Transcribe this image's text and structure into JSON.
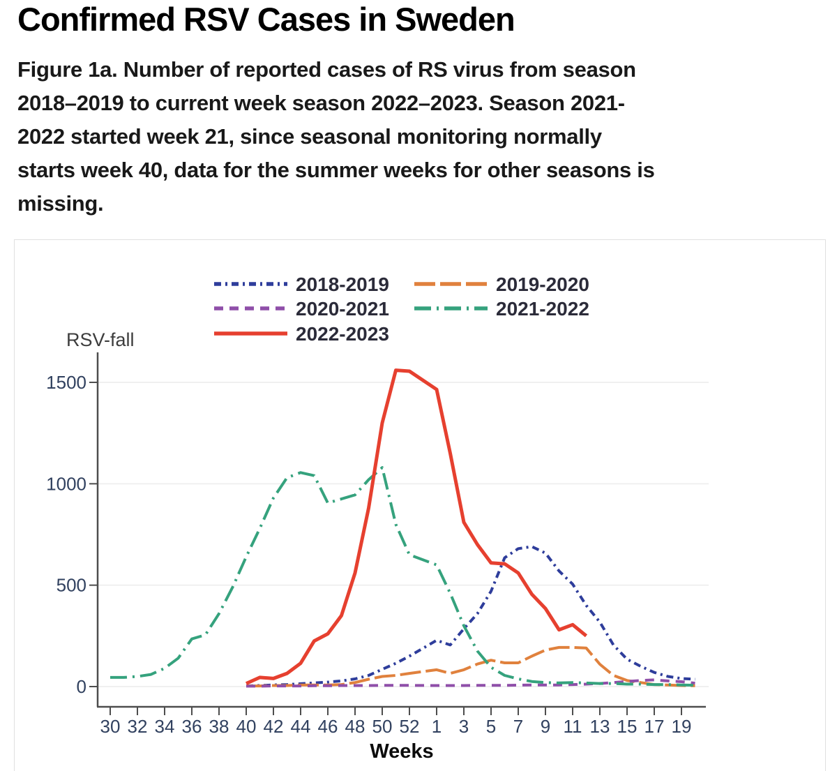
{
  "title": "Confirmed RSV Cases in Sweden",
  "caption": "Figure 1a. Number of reported cases of RS virus from season\n2018–2019 to current week season 2022–2023. Season 2021-\n2022 started week 21, since seasonal monitoring normally\nstarts week 40, data for the summer weeks for other seasons is\nmissing.",
  "chart_data": {
    "type": "line",
    "ylabel": "RSV-fall",
    "xlabel": "Weeks",
    "x_tick_labels": [
      "30",
      "32",
      "34",
      "36",
      "38",
      "40",
      "42",
      "44",
      "46",
      "48",
      "50",
      "52",
      "1",
      "3",
      "5",
      "7",
      "9",
      "11",
      "13",
      "15",
      "17",
      "19"
    ],
    "y_ticks": [
      0,
      500,
      1000,
      1500
    ],
    "ylim": [
      0,
      1650
    ],
    "grid": "horizontal",
    "legend_position": "top",
    "axis_color": "#4d4d4d",
    "gridline_color": "#ececec",
    "panel_border_color": "#e0e0e0",
    "series": [
      {
        "name": "2018-2019",
        "color": "#2e3d9b",
        "line": "dash-dot-dot",
        "weeks": [
          40,
          41,
          42,
          43,
          44,
          45,
          46,
          47,
          48,
          49,
          50,
          51,
          52,
          1,
          2,
          3,
          4,
          5,
          6,
          7,
          8,
          9,
          10,
          11,
          12,
          13,
          14,
          15,
          16,
          17,
          18,
          19,
          20
        ],
        "values": [
          3,
          5,
          8,
          10,
          14,
          18,
          22,
          28,
          38,
          55,
          85,
          115,
          150,
          228,
          205,
          285,
          360,
          470,
          635,
          680,
          690,
          658,
          570,
          505,
          400,
          318,
          205,
          135,
          100,
          70,
          50,
          40,
          36
        ]
      },
      {
        "name": "2019-2020",
        "color": "#e0813d",
        "line": "long-dash",
        "weeks": [
          40,
          41,
          42,
          43,
          44,
          45,
          46,
          47,
          48,
          49,
          50,
          51,
          52,
          1,
          2,
          3,
          4,
          5,
          6,
          7,
          8,
          9,
          10,
          11,
          12,
          13,
          14,
          15,
          16,
          17,
          18,
          19,
          20
        ],
        "values": [
          3,
          3,
          5,
          5,
          8,
          8,
          8,
          10,
          20,
          36,
          50,
          55,
          65,
          83,
          65,
          83,
          111,
          130,
          117,
          117,
          150,
          180,
          193,
          193,
          190,
          110,
          55,
          30,
          20,
          10,
          8,
          5,
          4
        ]
      },
      {
        "name": "2020-2021",
        "color": "#8f4fa9",
        "line": "dash",
        "weeks": [
          40,
          41,
          42,
          43,
          44,
          45,
          46,
          47,
          48,
          49,
          50,
          51,
          52,
          1,
          2,
          3,
          4,
          5,
          6,
          7,
          8,
          9,
          10,
          11,
          12,
          13,
          14,
          15,
          16,
          17,
          18,
          19,
          20
        ],
        "values": [
          2,
          2,
          3,
          3,
          3,
          4,
          4,
          5,
          5,
          5,
          6,
          6,
          6,
          5,
          5,
          5,
          6,
          6,
          6,
          7,
          8,
          8,
          8,
          10,
          12,
          15,
          20,
          25,
          30,
          33,
          28,
          24,
          17
        ]
      },
      {
        "name": "2021-2022",
        "color": "#35a27d",
        "line": "long-dash-dot",
        "weeks": [
          30,
          31,
          32,
          33,
          34,
          35,
          36,
          37,
          38,
          39,
          40,
          41,
          42,
          43,
          44,
          45,
          46,
          47,
          48,
          49,
          50,
          51,
          52,
          1,
          2,
          3,
          4,
          5,
          6,
          7,
          8,
          9,
          10,
          11,
          12,
          13,
          14,
          15,
          16,
          17,
          18,
          19,
          20
        ],
        "values": [
          45,
          45,
          50,
          60,
          90,
          140,
          235,
          255,
          360,
          490,
          640,
          780,
          930,
          1030,
          1055,
          1040,
          905,
          925,
          945,
          1020,
          1080,
          800,
          650,
          600,
          460,
          300,
          175,
          95,
          55,
          38,
          25,
          20,
          18,
          20,
          18,
          15,
          15,
          12,
          12,
          10,
          10,
          8,
          7
        ]
      },
      {
        "name": "2022-2023",
        "color": "#e6402f",
        "line": "solid",
        "weeks": [
          40,
          41,
          42,
          43,
          44,
          45,
          46,
          47,
          48,
          49,
          50,
          51,
          52,
          1,
          2,
          3,
          4,
          5,
          6,
          7,
          8,
          9,
          10,
          11,
          12
        ],
        "values": [
          15,
          45,
          40,
          65,
          115,
          225,
          260,
          350,
          560,
          880,
          1300,
          1560,
          1555,
          1465,
          1150,
          810,
          700,
          610,
          605,
          560,
          455,
          385,
          280,
          305,
          250
        ]
      }
    ]
  }
}
